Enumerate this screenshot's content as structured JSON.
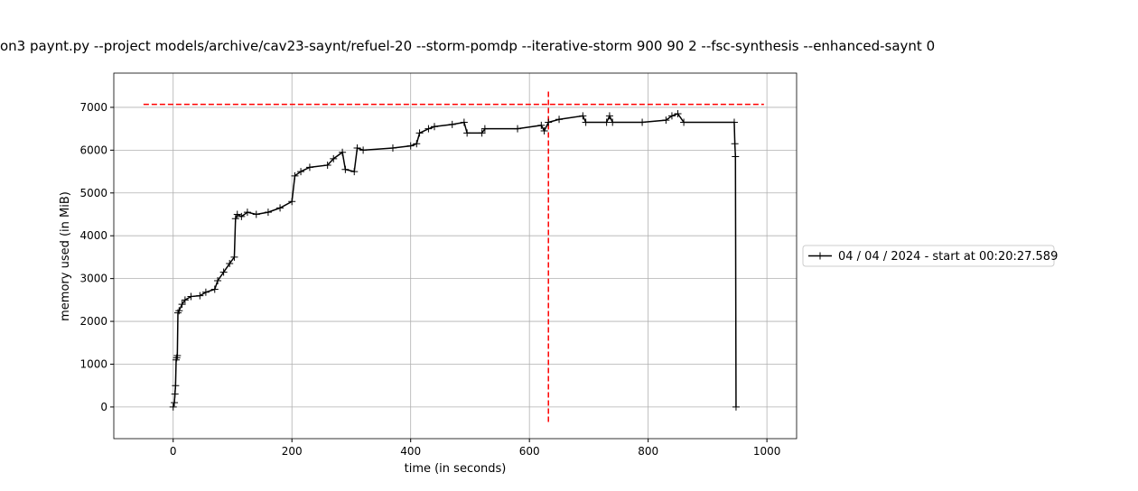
{
  "chart_data": {
    "type": "line",
    "title": "on3 paynt.py --project models/archive/cav23-saynt/refuel-20 --storm-pomdp --iterative-storm 900 90 2 --fsc-synthesis --enhanced-saynt 0",
    "xlabel": "time (in seconds)",
    "ylabel": "memory used (in MiB)",
    "xlim": [
      -100,
      1050
    ],
    "ylim": [
      -740,
      7800
    ],
    "xticks": [
      0,
      200,
      400,
      600,
      800,
      1000
    ],
    "yticks": [
      0,
      1000,
      2000,
      3000,
      4000,
      5000,
      6000,
      7000
    ],
    "grid": true,
    "legend": "right",
    "series": [
      {
        "name": "04 / 04 / 2024 - start at 00:20:27.589",
        "color": "#000000",
        "x": [
          0,
          2,
          3,
          4,
          5,
          6,
          7,
          8,
          10,
          15,
          20,
          30,
          45,
          55,
          70,
          75,
          85,
          95,
          103,
          105,
          108,
          115,
          125,
          140,
          160,
          180,
          200,
          205,
          215,
          230,
          260,
          270,
          285,
          290,
          305,
          310,
          320,
          370,
          400,
          410,
          415,
          430,
          440,
          470,
          490,
          495,
          520,
          525,
          580,
          620,
          625,
          632,
          650,
          690,
          695,
          730,
          735,
          740,
          790,
          830,
          840,
          850,
          860,
          945,
          946,
          947,
          948
        ],
        "values": [
          0,
          100,
          300,
          500,
          1100,
          1150,
          1200,
          2200,
          2250,
          2400,
          2500,
          2580,
          2600,
          2680,
          2750,
          2950,
          3150,
          3350,
          3500,
          4400,
          4500,
          4450,
          4550,
          4500,
          4550,
          4650,
          4800,
          5400,
          5500,
          5600,
          5650,
          5800,
          5950,
          5550,
          5500,
          6050,
          6000,
          6050,
          6100,
          6150,
          6400,
          6500,
          6550,
          6600,
          6650,
          6400,
          6400,
          6500,
          6500,
          6580,
          6450,
          6650,
          6720,
          6800,
          6650,
          6650,
          6800,
          6650,
          6650,
          6700,
          6800,
          6850,
          6650,
          6650,
          6150,
          5850,
          0
        ]
      }
    ],
    "hlines": [
      {
        "y": 7070,
        "xmin": -50,
        "xmax": 995,
        "color": "#ff0000"
      }
    ],
    "vlines": [
      {
        "x": 632,
        "ymin": -350,
        "ymax": 7400,
        "color": "#ff0000"
      }
    ]
  }
}
